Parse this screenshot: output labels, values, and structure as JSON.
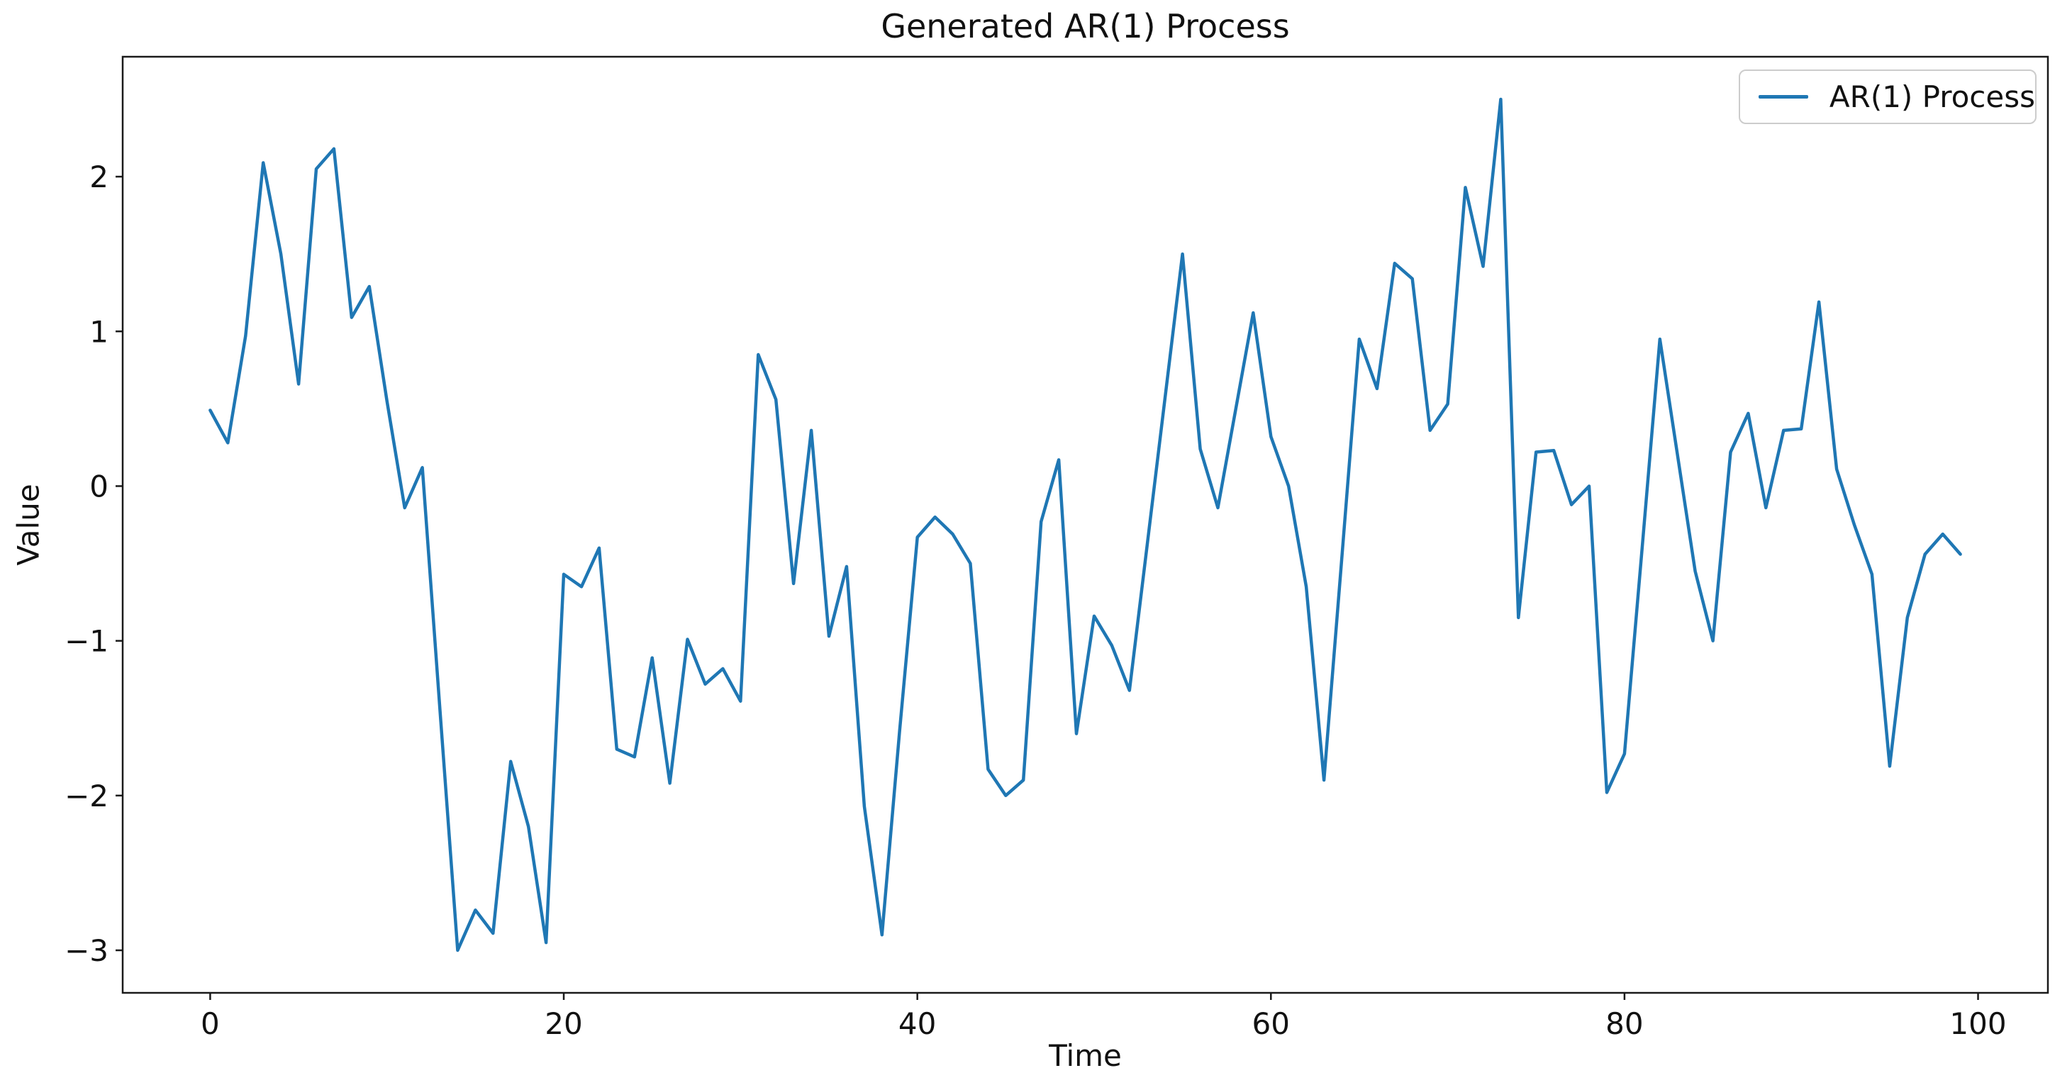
{
  "title": "Generated AR(1) Process",
  "colors": {
    "background": "#ffffff",
    "line": "#1f77b4",
    "spine": "#1a1a1a",
    "text": "#111111",
    "legend_border": "#cccccc"
  },
  "legend": {
    "entries": [
      {
        "label": "AR(1) Process",
        "color": "#1f77b4"
      }
    ],
    "position": "upper right"
  },
  "chart_data": {
    "type": "line",
    "title": "Generated AR(1) Process",
    "xlabel": "Time",
    "ylabel": "Value",
    "grid": false,
    "legend_position": "upper right",
    "xlim": [
      -4.95,
      103.95
    ],
    "ylim": [
      -3.275,
      2.775
    ],
    "x_ticks": [
      0,
      20,
      40,
      60,
      80,
      100
    ],
    "y_ticks": [
      -3,
      -2,
      -1,
      0,
      1,
      2
    ],
    "series": [
      {
        "name": "AR(1) Process",
        "color": "#1f77b4",
        "x_start": 0,
        "x_step": 1,
        "values": [
          0.49,
          0.28,
          0.97,
          2.09,
          1.5,
          0.66,
          2.05,
          2.18,
          1.09,
          1.29,
          0.55,
          -0.14,
          0.12,
          -1.45,
          -3.0,
          -2.74,
          -2.89,
          -1.78,
          -2.2,
          -2.95,
          -0.57,
          -0.65,
          -0.4,
          -1.7,
          -1.75,
          -1.11,
          -1.92,
          -0.99,
          -1.28,
          -1.18,
          -1.39,
          0.85,
          0.56,
          -0.63,
          0.36,
          -0.97,
          -0.52,
          -2.07,
          -2.9,
          -1.58,
          -0.33,
          -0.2,
          -0.31,
          -0.5,
          -1.83,
          -2.0,
          -1.9,
          -0.23,
          0.17,
          -1.6,
          -0.84,
          -1.03,
          -1.32,
          -0.38,
          0.56,
          1.5,
          0.24,
          -0.14,
          0.49,
          1.12,
          0.32,
          0.0,
          -0.65,
          -1.9,
          -0.48,
          0.95,
          0.63,
          1.44,
          1.34,
          0.36,
          0.53,
          1.93,
          1.42,
          2.5,
          -0.85,
          0.22,
          0.23,
          -0.12,
          0.0,
          -1.98,
          -1.73,
          -0.4,
          0.95,
          0.2,
          -0.55,
          -1.0,
          0.22,
          0.47,
          -0.14,
          0.36,
          0.37,
          1.19,
          0.11,
          -0.25,
          -0.57,
          -1.81,
          -0.85,
          -0.44,
          -0.31,
          -0.44
        ]
      }
    ]
  },
  "artifact_text": "' '"
}
